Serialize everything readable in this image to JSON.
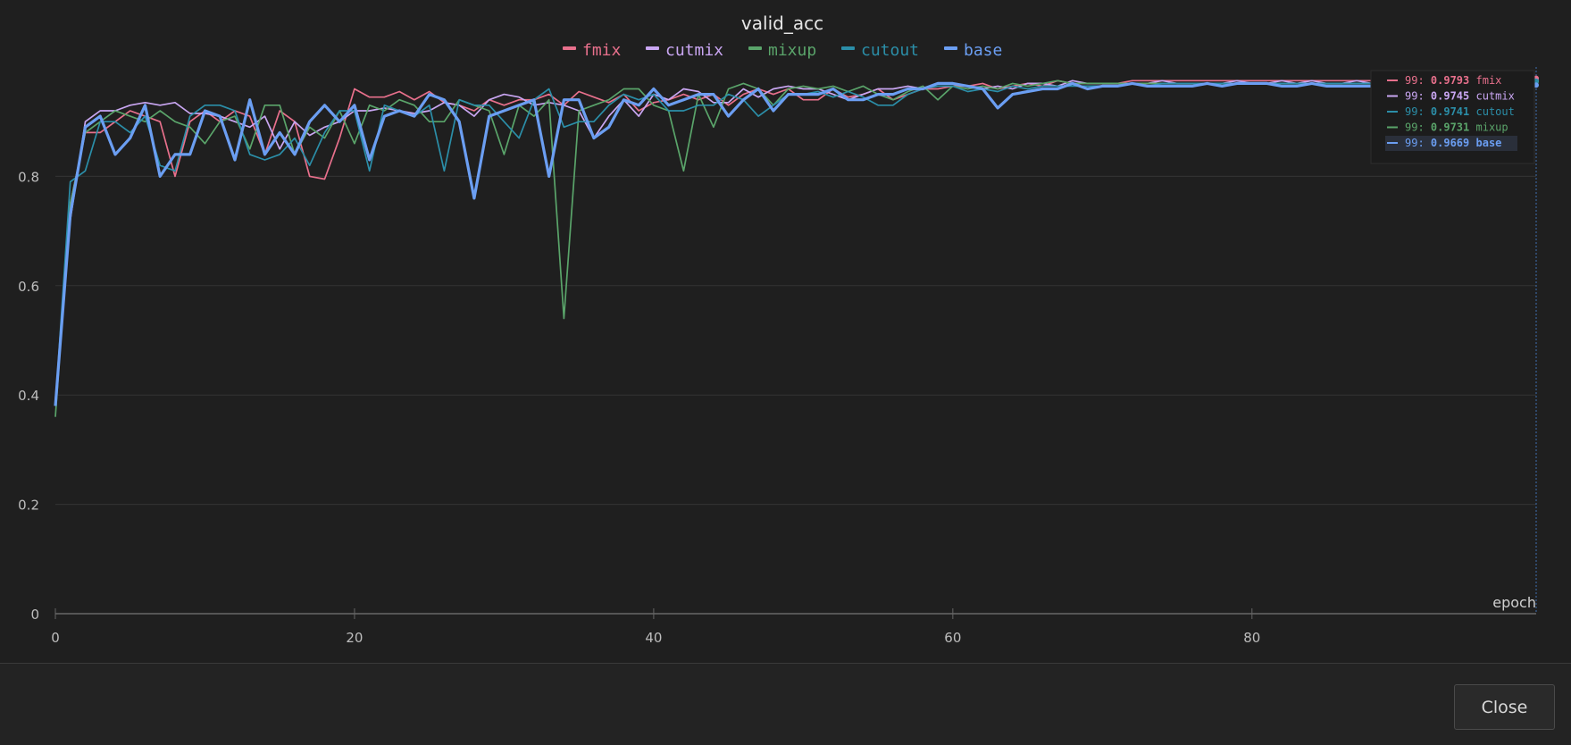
{
  "footer": {
    "close_label": "Close"
  },
  "chart_data": {
    "type": "line",
    "title": "valid_acc",
    "xlabel": "epoch",
    "ylabel": "",
    "xlim": [
      0,
      99
    ],
    "ylim": [
      0,
      1.0
    ],
    "x_ticks": [
      0,
      20,
      40,
      60,
      80
    ],
    "y_ticks": [
      0,
      0.2,
      0.4,
      0.6,
      0.8
    ],
    "x_tick_labels": [
      "0",
      "20",
      "40",
      "60",
      "80"
    ],
    "y_tick_labels": [
      "0",
      "0.2",
      "0.4",
      "0.6",
      "0.8"
    ],
    "grid": "horizontal",
    "legend_position": "top-center",
    "legend": [
      "fmix",
      "cutmix",
      "mixup",
      "cutout",
      "base"
    ],
    "tooltip": {
      "epoch": "99",
      "entries": [
        {
          "label": "99:",
          "value": "0.9793",
          "name": "fmix"
        },
        {
          "label": "99:",
          "value": "0.9745",
          "name": "cutmix"
        },
        {
          "label": "99:",
          "value": "0.9741",
          "name": "cutout"
        },
        {
          "label": "99:",
          "value": "0.9731",
          "name": "mixup"
        },
        {
          "label": "99:",
          "value": "0.9669",
          "name": "base"
        }
      ]
    },
    "series": [
      {
        "name": "fmix",
        "color": "#e8708c",
        "values": [
          0.38,
          0.75,
          0.88,
          0.88,
          0.9,
          0.92,
          0.91,
          0.9,
          0.8,
          0.9,
          0.92,
          0.9,
          0.92,
          0.91,
          0.84,
          0.92,
          0.9,
          0.8,
          0.795,
          0.87,
          0.96,
          0.945,
          0.945,
          0.955,
          0.94,
          0.955,
          0.935,
          0.93,
          0.92,
          0.94,
          0.93,
          0.94,
          0.94,
          0.95,
          0.93,
          0.955,
          0.945,
          0.935,
          0.95,
          0.92,
          0.935,
          0.94,
          0.95,
          0.94,
          0.95,
          0.93,
          0.95,
          0.96,
          0.95,
          0.96,
          0.94,
          0.94,
          0.96,
          0.945,
          0.95,
          0.96,
          0.94,
          0.95,
          0.96,
          0.96,
          0.965,
          0.965,
          0.97,
          0.96,
          0.965,
          0.97,
          0.965,
          0.975,
          0.97,
          0.97,
          0.97,
          0.97,
          0.975,
          0.975,
          0.975,
          0.975,
          0.975,
          0.975,
          0.975,
          0.975,
          0.975,
          0.975,
          0.975,
          0.975,
          0.975,
          0.975,
          0.975,
          0.975,
          0.975,
          0.98,
          0.975,
          0.975,
          0.98,
          0.98,
          0.978,
          0.978,
          0.978,
          0.979,
          0.979,
          0.9793
        ]
      },
      {
        "name": "cutmix",
        "color": "#c9a6f2",
        "values": [
          0.39,
          0.72,
          0.9,
          0.92,
          0.92,
          0.93,
          0.935,
          0.93,
          0.935,
          0.915,
          0.915,
          0.91,
          0.9,
          0.89,
          0.91,
          0.85,
          0.9,
          0.875,
          0.89,
          0.9,
          0.92,
          0.92,
          0.925,
          0.92,
          0.915,
          0.92,
          0.935,
          0.93,
          0.91,
          0.94,
          0.95,
          0.945,
          0.93,
          0.935,
          0.93,
          0.92,
          0.87,
          0.91,
          0.94,
          0.91,
          0.95,
          0.94,
          0.96,
          0.955,
          0.935,
          0.935,
          0.96,
          0.945,
          0.96,
          0.965,
          0.96,
          0.96,
          0.95,
          0.94,
          0.95,
          0.96,
          0.96,
          0.965,
          0.96,
          0.97,
          0.97,
          0.965,
          0.96,
          0.965,
          0.96,
          0.97,
          0.97,
          0.965,
          0.975,
          0.97,
          0.97,
          0.97,
          0.97,
          0.97,
          0.975,
          0.97,
          0.97,
          0.97,
          0.97,
          0.975,
          0.97,
          0.97,
          0.975,
          0.97,
          0.975,
          0.97,
          0.97,
          0.975,
          0.97,
          0.97,
          0.97,
          0.975,
          0.975,
          0.97,
          0.972,
          0.974,
          0.974,
          0.974,
          0.974,
          0.9745
        ]
      },
      {
        "name": "mixup",
        "color": "#5aa46a",
        "values": [
          0.36,
          0.75,
          0.88,
          0.9,
          0.92,
          0.91,
          0.9,
          0.92,
          0.9,
          0.89,
          0.86,
          0.9,
          0.91,
          0.85,
          0.93,
          0.93,
          0.84,
          0.89,
          0.87,
          0.92,
          0.86,
          0.93,
          0.92,
          0.94,
          0.93,
          0.9,
          0.9,
          0.94,
          0.93,
          0.92,
          0.84,
          0.93,
          0.91,
          0.94,
          0.54,
          0.92,
          0.93,
          0.94,
          0.96,
          0.96,
          0.93,
          0.92,
          0.81,
          0.95,
          0.89,
          0.96,
          0.97,
          0.96,
          0.93,
          0.96,
          0.965,
          0.96,
          0.965,
          0.955,
          0.965,
          0.95,
          0.94,
          0.955,
          0.965,
          0.94,
          0.965,
          0.96,
          0.965,
          0.96,
          0.97,
          0.965,
          0.97,
          0.975,
          0.97,
          0.97,
          0.97,
          0.97,
          0.97,
          0.97,
          0.97,
          0.97,
          0.97,
          0.97,
          0.97,
          0.97,
          0.97,
          0.97,
          0.97,
          0.97,
          0.97,
          0.97,
          0.97,
          0.97,
          0.97,
          0.97,
          0.97,
          0.97,
          0.97,
          0.972,
          0.972,
          0.972,
          0.973,
          0.973,
          0.973,
          0.9731
        ]
      },
      {
        "name": "cutout",
        "color": "#2b8ea8",
        "values": [
          0.38,
          0.79,
          0.81,
          0.9,
          0.9,
          0.88,
          0.91,
          0.82,
          0.81,
          0.91,
          0.93,
          0.93,
          0.92,
          0.84,
          0.83,
          0.84,
          0.87,
          0.82,
          0.88,
          0.92,
          0.92,
          0.81,
          0.93,
          0.92,
          0.91,
          0.93,
          0.81,
          0.94,
          0.93,
          0.93,
          0.9,
          0.87,
          0.94,
          0.96,
          0.89,
          0.9,
          0.9,
          0.93,
          0.95,
          0.94,
          0.95,
          0.92,
          0.92,
          0.93,
          0.93,
          0.95,
          0.94,
          0.91,
          0.93,
          0.95,
          0.95,
          0.955,
          0.945,
          0.955,
          0.945,
          0.93,
          0.93,
          0.95,
          0.96,
          0.965,
          0.965,
          0.955,
          0.96,
          0.955,
          0.965,
          0.96,
          0.965,
          0.965,
          0.965,
          0.965,
          0.965,
          0.965,
          0.97,
          0.965,
          0.97,
          0.97,
          0.97,
          0.97,
          0.97,
          0.97,
          0.97,
          0.97,
          0.97,
          0.97,
          0.97,
          0.97,
          0.97,
          0.97,
          0.97,
          0.97,
          0.97,
          0.97,
          0.97,
          0.972,
          0.972,
          0.973,
          0.973,
          0.974,
          0.974,
          0.9741
        ]
      },
      {
        "name": "base",
        "color": "#6b9ef2",
        "values": [
          0.38,
          0.73,
          0.89,
          0.91,
          0.84,
          0.87,
          0.93,
          0.8,
          0.84,
          0.84,
          0.92,
          0.91,
          0.83,
          0.94,
          0.84,
          0.88,
          0.84,
          0.9,
          0.93,
          0.9,
          0.93,
          0.83,
          0.91,
          0.92,
          0.91,
          0.95,
          0.94,
          0.9,
          0.76,
          0.91,
          0.92,
          0.93,
          0.94,
          0.8,
          0.94,
          0.94,
          0.87,
          0.89,
          0.94,
          0.93,
          0.96,
          0.93,
          0.94,
          0.95,
          0.95,
          0.91,
          0.94,
          0.96,
          0.92,
          0.95,
          0.95,
          0.95,
          0.96,
          0.94,
          0.94,
          0.95,
          0.95,
          0.96,
          0.96,
          0.97,
          0.97,
          0.965,
          0.96,
          0.925,
          0.95,
          0.955,
          0.96,
          0.96,
          0.97,
          0.96,
          0.965,
          0.965,
          0.97,
          0.965,
          0.965,
          0.965,
          0.965,
          0.97,
          0.965,
          0.97,
          0.97,
          0.97,
          0.965,
          0.965,
          0.97,
          0.965,
          0.965,
          0.965,
          0.965,
          0.965,
          0.965,
          0.965,
          0.965,
          0.966,
          0.966,
          0.966,
          0.966,
          0.967,
          0.967,
          0.9669
        ]
      }
    ]
  }
}
